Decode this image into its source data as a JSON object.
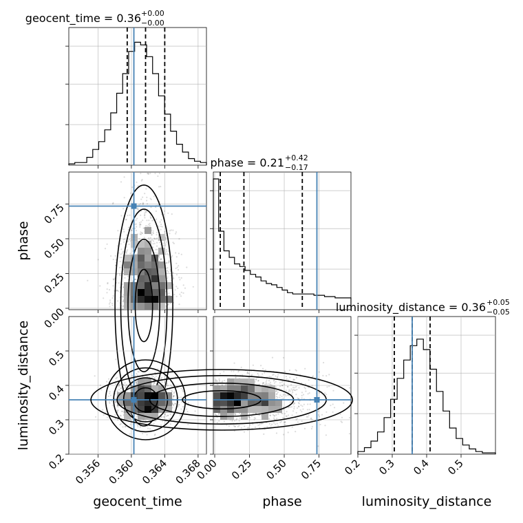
{
  "colors": {
    "truth": "#4682b4",
    "hist": "#000000",
    "grid": "#b0b0b0",
    "scatter": "#000000"
  },
  "chart_data": {
    "type": "corner",
    "parameters": [
      {
        "name": "geocent_time",
        "label": "geocent_time",
        "title_main": "geocent_time = 0.36",
        "title_sup": "+0.00",
        "title_sub": "−0.00",
        "range": [
          0.3525,
          0.369
        ],
        "ticks": [
          0.356,
          0.36,
          0.364,
          0.368
        ],
        "tick_labels": [
          "0.356",
          "0.360",
          "0.364",
          "0.368"
        ],
        "truth": 0.3603,
        "quantiles": [
          0.3595,
          0.3617,
          0.364
        ]
      },
      {
        "name": "phase",
        "label": "phase",
        "title_main": "phase = 0.21",
        "title_sup": "+0.42",
        "title_sub": "−0.17",
        "range": [
          -0.01,
          0.98
        ],
        "ticks": [
          0.0,
          0.25,
          0.5,
          0.75
        ],
        "tick_labels": [
          "0.00",
          "0.25",
          "0.50",
          "0.75"
        ],
        "truth": 0.735,
        "quantiles": [
          0.04,
          0.21,
          0.63
        ]
      },
      {
        "name": "luminosity_distance",
        "label": "luminosity_distance",
        "title_main": "luminosity_distance = 0.36",
        "title_sup": "+0.05",
        "title_sub": "−0.05",
        "range": [
          0.2,
          0.6
        ],
        "ticks": [
          0.2,
          0.3,
          0.4,
          0.5
        ],
        "tick_labels": [
          "0.2",
          "0.3",
          "0.4",
          "0.5"
        ],
        "truth": 0.358,
        "quantiles": [
          0.306,
          0.358,
          0.41
        ]
      }
    ],
    "histograms": [
      [
        0.01,
        0.02,
        0.02,
        0.06,
        0.12,
        0.18,
        0.27,
        0.4,
        0.55,
        0.7,
        0.87,
        0.94,
        0.92,
        0.83,
        0.7,
        0.53,
        0.39,
        0.26,
        0.16,
        0.1,
        0.05,
        0.03,
        0.02
      ],
      [
        1.0,
        0.6,
        0.45,
        0.4,
        0.35,
        0.33,
        0.3,
        0.27,
        0.25,
        0.22,
        0.2,
        0.19,
        0.17,
        0.15,
        0.13,
        0.12,
        0.12,
        0.12,
        0.12,
        0.11,
        0.11,
        0.1,
        0.1,
        0.09,
        0.09,
        0.09
      ],
      [
        0.02,
        0.05,
        0.1,
        0.17,
        0.28,
        0.42,
        0.58,
        0.72,
        0.83,
        0.88,
        0.8,
        0.65,
        0.48,
        0.33,
        0.2,
        0.12,
        0.07,
        0.04,
        0.02,
        0.01,
        0.01
      ]
    ],
    "grid": true
  }
}
